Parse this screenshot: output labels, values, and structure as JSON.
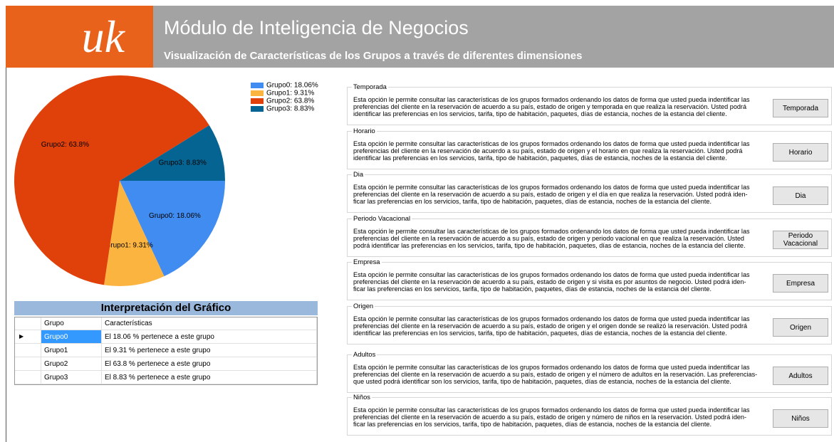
{
  "header": {
    "logo": "uk",
    "title": "Módulo de Inteligencia de Negocios",
    "subtitle": "Visualización de Características de los Grupos a través de diferentes dimensiones"
  },
  "chart_data": {
    "type": "pie",
    "categories": [
      "Grupo0",
      "Grupo1",
      "Grupo2",
      "Grupo3"
    ],
    "values": [
      18.06,
      9.31,
      63.8,
      8.83
    ],
    "value_labels": [
      "Grupo0: 18.06%",
      "Grupo1: 9.31%",
      "Grupo2: 63.8%",
      "Grupo3: 8.83%"
    ],
    "colors": [
      "#418cf0",
      "#fcb441",
      "#e0400a",
      "#056492"
    ],
    "legend": "top-right"
  },
  "table": {
    "title": "Interpretación del Gráfico",
    "columns": [
      "Grupo",
      "Características"
    ],
    "rows": [
      [
        "Grupo0",
        "El 18.06 % pertenece a este grupo"
      ],
      [
        "Grupo1",
        "El 9.31 % pertenece a este grupo"
      ],
      [
        "Grupo2",
        "El 63.8 % pertenece a este grupo"
      ],
      [
        "Grupo3",
        "El 8.83 % pertenece a este grupo"
      ]
    ]
  },
  "panels": [
    {
      "title": "Temporada",
      "button": "Temporada",
      "lines": [
        "Esta opción le permite  consultar las características de los grupos formados ordenando los datos de forma que usted pueda indentificar las",
        "preferencias del cliente en la reservación de  acuerdo a su país, estado de origen y temporada en que  realiza la reservación. Usted podrá",
        "identificar las preferencias en los servicios, tarifa, tipo de habitación, paquetes, días de estancia, noches de la estancia del cliente."
      ]
    },
    {
      "title": "Horario",
      "button": "Horario",
      "lines": [
        "Esta opción le permite  consultar las características de los grupos formados ordenando los datos de forma que usted pueda indentificar las",
        "preferencias del cliente en la  reservación de acuerdo a su país, estado de origen y el horario en que realiza la reservación. Usted podrá",
        "identificar las preferencias en los servicios, tarifa, tipo de habitación, paquetes, días de estancia, noches de la estancia del cliente."
      ]
    },
    {
      "title": "Dia",
      "button": "Dia",
      "lines": [
        "Esta opción le permite  consultar las características de los grupos formados ordenando los datos de forma que usted pueda indentificar las",
        "preferencias del cliente en la reservación de acuerdo a su país, estado de origen y el día en que realiza la reservación. Usted podrá iden-",
        "ficar las preferencias en los servicios, tarifa, tipo de habitación, paquetes, días de estancia, noches de la estancia del cliente."
      ]
    },
    {
      "title": "Periodo Vacacional",
      "button": "Periodo Vacacional",
      "lines": [
        "Esta opción le permite  consultar las características de los grupos formados ordenando los datos de forma que usted pueda indentificar las",
        "preferencias del cliente en la reservación de acuerdo a su país, estado de origen y periodo vacional en que realiza la reservación. Usted",
        "podrá identificar las preferencias en los servicios, tarifa, tipo de habitación, paquetes, días de estancia, noches de la estancia del cliente."
      ]
    },
    {
      "title": "Empresa",
      "button": "Empresa",
      "lines": [
        "Esta opción le permite  consultar las características de los grupos formados ordenando los datos de forma que usted pueda indentificar las",
        "preferencias del cliente en la reservación de acuerdo a su país, estado de origen y si visita es por asuntos de negocio. Usted podrá iden-",
        "ficar las preferencias en los servicios, tarifa, tipo de habitación, paquetes, días de estancia, noches de la estancia del cliente."
      ]
    },
    {
      "title": "Origen",
      "button": "Origen",
      "lines": [
        "Esta opción le permite  consultar las características de los grupos formados ordenando los datos de forma que usted pueda indentificar las",
        "preferencias del cliente en la  reservación de acuerdo a su país, estado de origen y el origen donde se realizó la reservación. Usted podrá",
        "identificar las preferencias en los servicios, tarifa, tipo de habitación, paquetes, días de estancia, noches de la estancia del cliente."
      ]
    },
    {
      "title": "Adultos",
      "button": "Adultos",
      "lines": [
        "Esta opción le permite  consultar las características de los grupos formados  ordenando los datos de forma que usted pueda  indentificar las",
        "preferencias del cliente en la reservación de acuerdo a su país, estado de origen y el número de adultos en la reservación. Las preferencias-",
        "que usted podrá identificar son los servicios, tarifa, tipo de habitación, paquetes, días de estancia, noches de la estancia del cliente."
      ]
    },
    {
      "title": "Niños",
      "button": "Niños",
      "lines": [
        "Esta opción le permite  consultar las características de los grupos formados ordenando los datos de forma que usted pueda indentificar las",
        "preferencias del cliente en la reservación de acuerdo a su país, estado de origen y número de niños en  la reservación. Usted podrá iden-",
        "ficar las preferencias en los servicios, tarifa, tipo de habitación, paquetes, días de estancia, noches de la estancia del cliente."
      ]
    }
  ]
}
